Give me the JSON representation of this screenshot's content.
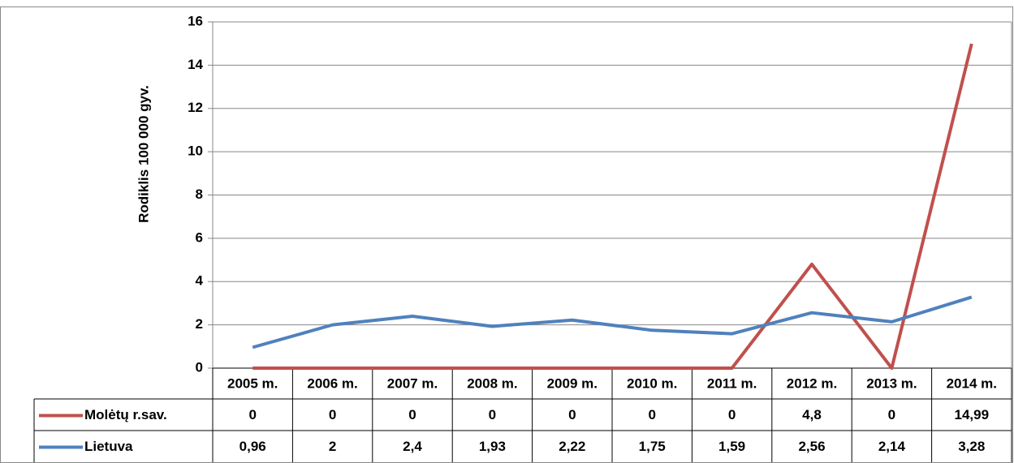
{
  "chart_data": {
    "type": "line",
    "y_label": "Rodiklis 100 000 gyv.",
    "categories": [
      "2005 m.",
      "2006 m.",
      "2007 m.",
      "2008 m.",
      "2009 m.",
      "2010 m.",
      "2011 m.",
      "2012 m.",
      "2013 m.",
      "2014 m."
    ],
    "series": [
      {
        "name": "Molėtų r.sav.",
        "color": "#c0504d",
        "values": [
          0,
          0,
          0,
          0,
          0,
          0,
          0,
          4.8,
          0,
          14.99
        ],
        "value_labels": [
          "0",
          "0",
          "0",
          "0",
          "0",
          "0",
          "0",
          "4,8",
          "0",
          "14,99"
        ]
      },
      {
        "name": "Lietuva",
        "color": "#4f81bd",
        "values": [
          0.96,
          2,
          2.4,
          1.93,
          2.22,
          1.75,
          1.59,
          2.56,
          2.14,
          3.28
        ],
        "value_labels": [
          "0,96",
          "2",
          "2,4",
          "1,93",
          "2,22",
          "1,75",
          "1,59",
          "2,56",
          "2,14",
          "3,28"
        ]
      }
    ],
    "ylim": [
      0,
      16
    ],
    "yticks": [
      0,
      2,
      4,
      6,
      8,
      10,
      12,
      14,
      16
    ],
    "grid": true
  }
}
